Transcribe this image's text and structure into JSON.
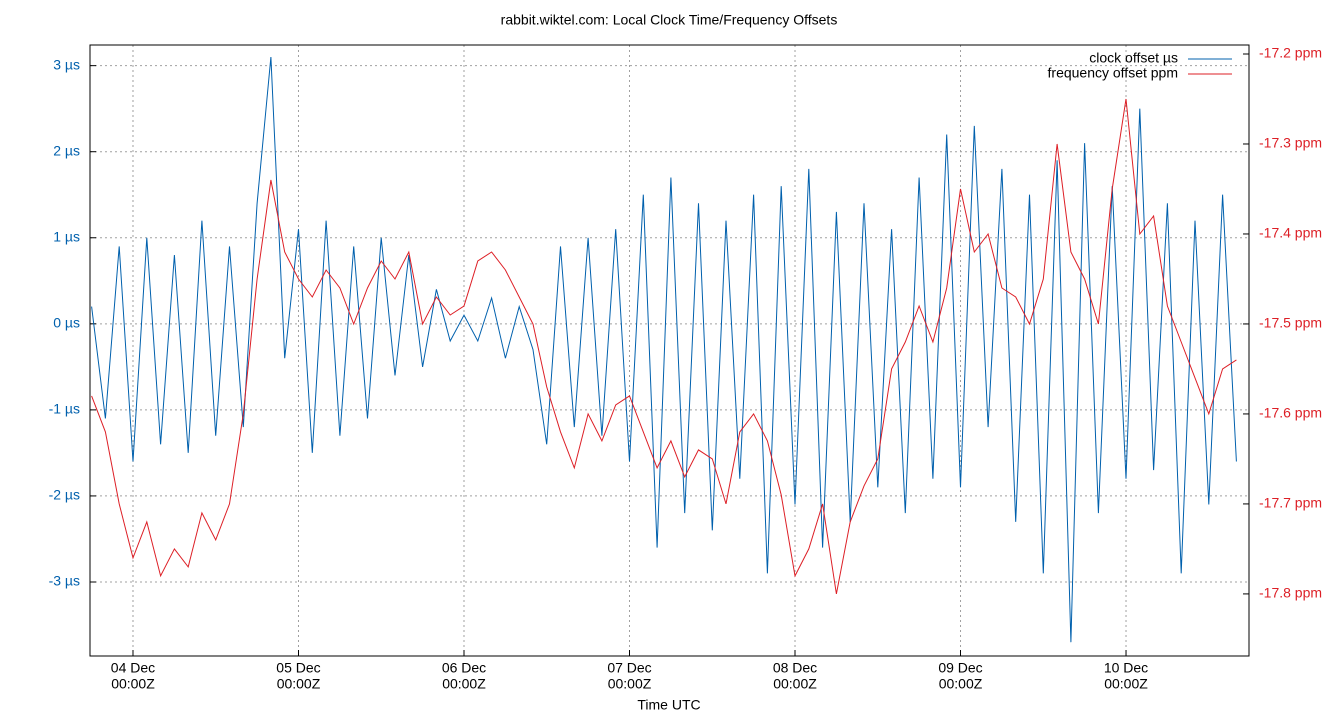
{
  "chart_data": {
    "type": "line",
    "title": "rabbit.wiktel.com: Local Clock Time/Frequency Offsets",
    "xlabel": "Time UTC",
    "grid": true,
    "legend": "top-right",
    "x": [
      "03 Dec 18:00Z",
      "03 Dec 20:00Z",
      "03 Dec 22:00Z",
      "04 Dec 00:00Z",
      "04 Dec 02:00Z",
      "04 Dec 04:00Z",
      "04 Dec 06:00Z",
      "04 Dec 08:00Z",
      "04 Dec 10:00Z",
      "04 Dec 12:00Z",
      "04 Dec 14:00Z",
      "04 Dec 16:00Z",
      "04 Dec 18:00Z",
      "04 Dec 20:00Z",
      "04 Dec 22:00Z",
      "05 Dec 00:00Z",
      "05 Dec 02:00Z",
      "05 Dec 04:00Z",
      "05 Dec 06:00Z",
      "05 Dec 08:00Z",
      "05 Dec 10:00Z",
      "05 Dec 12:00Z",
      "05 Dec 14:00Z",
      "05 Dec 16:00Z",
      "05 Dec 18:00Z",
      "05 Dec 20:00Z",
      "05 Dec 22:00Z",
      "06 Dec 00:00Z",
      "06 Dec 02:00Z",
      "06 Dec 04:00Z",
      "06 Dec 06:00Z",
      "06 Dec 08:00Z",
      "06 Dec 10:00Z",
      "06 Dec 12:00Z",
      "06 Dec 14:00Z",
      "06 Dec 16:00Z",
      "06 Dec 18:00Z",
      "06 Dec 20:00Z",
      "06 Dec 22:00Z",
      "07 Dec 00:00Z",
      "07 Dec 02:00Z",
      "07 Dec 04:00Z",
      "07 Dec 06:00Z",
      "07 Dec 08:00Z",
      "07 Dec 10:00Z",
      "07 Dec 12:00Z",
      "07 Dec 14:00Z",
      "07 Dec 16:00Z",
      "07 Dec 18:00Z",
      "07 Dec 20:00Z",
      "07 Dec 22:00Z",
      "08 Dec 00:00Z",
      "08 Dec 02:00Z",
      "08 Dec 04:00Z",
      "08 Dec 06:00Z",
      "08 Dec 08:00Z",
      "08 Dec 10:00Z",
      "08 Dec 12:00Z",
      "08 Dec 14:00Z",
      "08 Dec 16:00Z",
      "08 Dec 18:00Z",
      "08 Dec 20:00Z",
      "08 Dec 22:00Z",
      "09 Dec 00:00Z",
      "09 Dec 02:00Z",
      "09 Dec 04:00Z",
      "09 Dec 06:00Z",
      "09 Dec 08:00Z",
      "09 Dec 10:00Z",
      "09 Dec 12:00Z",
      "09 Dec 14:00Z",
      "09 Dec 16:00Z",
      "09 Dec 18:00Z",
      "09 Dec 20:00Z",
      "09 Dec 22:00Z",
      "10 Dec 00:00Z",
      "10 Dec 02:00Z",
      "10 Dec 04:00Z",
      "10 Dec 06:00Z",
      "10 Dec 08:00Z",
      "10 Dec 10:00Z",
      "10 Dec 12:00Z",
      "10 Dec 14:00Z",
      "10 Dec 16:00Z"
    ],
    "xlim": [
      "03 Dec 17:46Z",
      "10 Dec 17:50Z"
    ],
    "xticks": [
      {
        "value": "04 Dec 00:00Z",
        "label": [
          "04 Dec",
          "00:00Z"
        ]
      },
      {
        "value": "05 Dec 00:00Z",
        "label": [
          "05 Dec",
          "00:00Z"
        ]
      },
      {
        "value": "06 Dec 00:00Z",
        "label": [
          "06 Dec",
          "00:00Z"
        ]
      },
      {
        "value": "07 Dec 00:00Z",
        "label": [
          "07 Dec",
          "00:00Z"
        ]
      },
      {
        "value": "08 Dec 00:00Z",
        "label": [
          "08 Dec",
          "00:00Z"
        ]
      },
      {
        "value": "09 Dec 00:00Z",
        "label": [
          "09 Dec",
          "00:00Z"
        ]
      },
      {
        "value": "10 Dec 00:00Z",
        "label": [
          "10 Dec",
          "00:00Z"
        ]
      }
    ],
    "ylim": [
      -3.86,
      3.24
    ],
    "yticks": [
      {
        "value": -3,
        "label": "-3 µs"
      },
      {
        "value": -2,
        "label": "-2 µs"
      },
      {
        "value": -1,
        "label": "-1 µs"
      },
      {
        "value": 0,
        "label": "0 µs"
      },
      {
        "value": 1,
        "label": "1 µs"
      },
      {
        "value": 2,
        "label": "2 µs"
      },
      {
        "value": 3,
        "label": "3 µs"
      }
    ],
    "y2lim": [
      -17.869,
      -17.19
    ],
    "y2ticks": [
      {
        "value": -17.8,
        "label": "-17.8 ppm"
      },
      {
        "value": -17.7,
        "label": "-17.7 ppm"
      },
      {
        "value": -17.6,
        "label": "-17.6 ppm"
      },
      {
        "value": -17.5,
        "label": "-17.5 ppm"
      },
      {
        "value": -17.4,
        "label": "-17.4 ppm"
      },
      {
        "value": -17.3,
        "label": "-17.3 ppm"
      },
      {
        "value": -17.2,
        "label": "-17.2 ppm"
      }
    ],
    "series": [
      {
        "name": "clock offset µs",
        "color": "#0060ad",
        "axis": "y",
        "values": [
          0.2,
          -1.1,
          0.9,
          -1.6,
          1.0,
          -1.4,
          0.8,
          -1.5,
          1.2,
          -1.3,
          0.9,
          -1.2,
          1.4,
          3.1,
          -0.4,
          1.1,
          -1.5,
          1.2,
          -1.3,
          0.9,
          -1.1,
          1.0,
          -0.6,
          0.8,
          -0.5,
          0.4,
          -0.2,
          0.1,
          -0.2,
          0.3,
          -0.4,
          0.2,
          -0.3,
          -1.4,
          0.9,
          -1.2,
          1.0,
          -1.3,
          1.1,
          -1.6,
          1.5,
          -2.6,
          1.7,
          -2.2,
          1.4,
          -2.4,
          1.2,
          -1.8,
          1.5,
          -2.9,
          1.6,
          -2.1,
          1.8,
          -2.6,
          1.3,
          -2.3,
          1.4,
          -1.9,
          1.1,
          -2.2,
          1.7,
          -1.8,
          2.2,
          -1.9,
          2.3,
          -1.2,
          1.8,
          -2.3,
          1.5,
          -2.9,
          1.9,
          -3.7,
          2.1,
          -2.2,
          1.6,
          -1.8,
          2.5,
          -1.7,
          1.4,
          -2.9,
          1.2,
          -2.1,
          1.5,
          -1.6
        ]
      },
      {
        "name": "frequency offset ppm",
        "color": "#dd1f26",
        "axis": "y2",
        "values": [
          -17.58,
          -17.62,
          -17.7,
          -17.76,
          -17.72,
          -17.78,
          -17.75,
          -17.77,
          -17.71,
          -17.74,
          -17.7,
          -17.6,
          -17.45,
          -17.34,
          -17.42,
          -17.45,
          -17.47,
          -17.44,
          -17.46,
          -17.5,
          -17.46,
          -17.43,
          -17.45,
          -17.42,
          -17.5,
          -17.47,
          -17.49,
          -17.48,
          -17.43,
          -17.42,
          -17.44,
          -17.47,
          -17.5,
          -17.57,
          -17.62,
          -17.66,
          -17.6,
          -17.63,
          -17.59,
          -17.58,
          -17.62,
          -17.66,
          -17.63,
          -17.67,
          -17.64,
          -17.65,
          -17.7,
          -17.62,
          -17.6,
          -17.63,
          -17.69,
          -17.78,
          -17.75,
          -17.7,
          -17.8,
          -17.72,
          -17.68,
          -17.65,
          -17.55,
          -17.52,
          -17.48,
          -17.52,
          -17.46,
          -17.35,
          -17.42,
          -17.4,
          -17.46,
          -17.47,
          -17.5,
          -17.45,
          -17.3,
          -17.42,
          -17.45,
          -17.5,
          -17.35,
          -17.25,
          -17.4,
          -17.38,
          -17.48,
          -17.52,
          -17.56,
          -17.6,
          -17.55,
          -17.54
        ]
      }
    ]
  }
}
